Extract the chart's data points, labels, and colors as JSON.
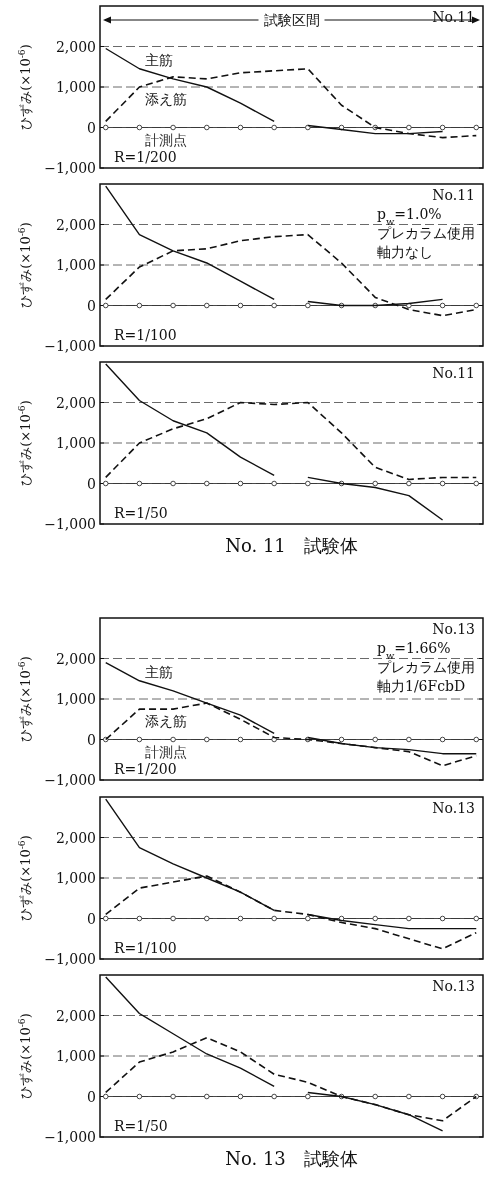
{
  "chart_data": [
    {
      "type": "line",
      "ylabel": "ひずみ(×10$^{-6}$)",
      "categories": [
        null,
        null,
        null,
        null,
        null,
        null,
        null,
        null,
        null,
        null,
        null,
        null
      ],
      "ylim": [
        -1000,
        3000
      ],
      "yticks": [
        {
          "value": -1000,
          "label": "−1,000"
        },
        {
          "value": 0,
          "label": "0"
        },
        {
          "value": 1000,
          "label": "1,000"
        },
        {
          "value": 2000,
          "label": "2,000"
        }
      ],
      "grid": "y",
      "tick_labels": "y",
      "legend": false,
      "annotations": [
        "R=1/200",
        "No.11",
        {
          "text": "試験区間"
        }
      ],
      "series": [
        {
          "name": "計測点",
          "color": "#333333",
          "marker": "circle",
          "line_style": "solid",
          "values": [
            0,
            0,
            0,
            0,
            0,
            0,
            0,
            0,
            0,
            0,
            0,
            0
          ]
        },
        {
          "name": "主筋",
          "color": "#111111",
          "line_style": "solid",
          "values": [
            1950,
            1450,
            1200,
            1000,
            600,
            150,
            null,
            null,
            null,
            null,
            null,
            null
          ]
        },
        {
          "color": "#111111",
          "line_style": "solid",
          "values": [
            null,
            null,
            null,
            null,
            null,
            null,
            50,
            -50,
            -150,
            -150,
            -100,
            null
          ]
        },
        {
          "name": "添え筋",
          "color": "#111111",
          "line_style": "dashed",
          "values": [
            150,
            1000,
            1250,
            1200,
            1350,
            1400,
            1450,
            550,
            0,
            -150,
            -250,
            -200
          ]
        }
      ]
    },
    {
      "type": "line",
      "ylabel": "ひずみ(×10$^{-6}$)",
      "categories": [
        null,
        null,
        null,
        null,
        null,
        null,
        null,
        null,
        null,
        null,
        null,
        null
      ],
      "ylim": [
        -1000,
        3000
      ],
      "yticks": [
        {
          "value": -1000,
          "label": "−1,000"
        },
        {
          "value": 0,
          "label": "0"
        },
        {
          "value": 1000,
          "label": "1,000"
        },
        {
          "value": 2000,
          "label": "2,000"
        }
      ],
      "grid": "y",
      "tick_labels": "y",
      "legend": false,
      "annotations": [
        "R=1/100",
        "No.11",
        "p$_{w}$=1.0%",
        "プレカラム使用",
        "軸力なし"
      ],
      "series": [
        {
          "color": "#333333",
          "marker": "circle",
          "line_style": "solid",
          "values": [
            0,
            0,
            0,
            0,
            0,
            0,
            0,
            0,
            0,
            0,
            0,
            0
          ]
        },
        {
          "color": "#111111",
          "line_style": "solid",
          "values": [
            2950,
            1750,
            1350,
            1050,
            600,
            150,
            null,
            null,
            null,
            null,
            null,
            null
          ]
        },
        {
          "color": "#111111",
          "line_style": "solid",
          "values": [
            null,
            null,
            null,
            null,
            null,
            null,
            100,
            0,
            0,
            50,
            150,
            null
          ]
        },
        {
          "color": "#111111",
          "line_style": "dashed",
          "values": [
            150,
            950,
            1350,
            1400,
            1600,
            1700,
            1750,
            1050,
            200,
            -100,
            -250,
            -100
          ]
        }
      ]
    },
    {
      "type": "line",
      "title": "No. 11　試験体",
      "ylabel": "ひずみ(×10$^{-6}$)",
      "categories": [
        null,
        null,
        null,
        null,
        null,
        null,
        null,
        null,
        null,
        null,
        null,
        null
      ],
      "ylim": [
        -1000,
        3000
      ],
      "yticks": [
        {
          "value": -1000,
          "label": "−1,000"
        },
        {
          "value": 0,
          "label": "0"
        },
        {
          "value": 1000,
          "label": "1,000"
        },
        {
          "value": 2000,
          "label": "2,000"
        }
      ],
      "grid": "y",
      "tick_labels": "y",
      "legend": false,
      "annotations": [
        "R=1/50",
        "No.11"
      ],
      "series": [
        {
          "color": "#333333",
          "marker": "circle",
          "line_style": "solid",
          "values": [
            0,
            0,
            0,
            0,
            0,
            0,
            0,
            0,
            0,
            0,
            0,
            0
          ]
        },
        {
          "color": "#111111",
          "line_style": "solid",
          "values": [
            2950,
            2050,
            1550,
            1250,
            650,
            200,
            null,
            null,
            null,
            null,
            null,
            null
          ]
        },
        {
          "color": "#111111",
          "line_style": "solid",
          "values": [
            null,
            null,
            null,
            null,
            null,
            null,
            150,
            0,
            -100,
            -300,
            -900,
            null
          ]
        },
        {
          "color": "#111111",
          "line_style": "dashed",
          "values": [
            150,
            1000,
            1350,
            1600,
            2000,
            1950,
            2000,
            1250,
            400,
            100,
            150,
            150
          ]
        }
      ]
    },
    {
      "type": "line",
      "ylabel": "ひずみ(×10$^{-6}$)",
      "categories": [
        null,
        null,
        null,
        null,
        null,
        null,
        null,
        null,
        null,
        null,
        null,
        null
      ],
      "ylim": [
        -1000,
        3000
      ],
      "yticks": [
        {
          "value": -1000,
          "label": "−1,000"
        },
        {
          "value": 0,
          "label": "0"
        },
        {
          "value": 1000,
          "label": "1,000"
        },
        {
          "value": 2000,
          "label": "2,000"
        }
      ],
      "grid": "y",
      "tick_labels": "y",
      "legend": false,
      "annotations": [
        "R=1/200",
        "No.13",
        "p$_{w}$=1.66%",
        "プレカラム使用",
        "軸力1/6FcbD"
      ],
      "series": [
        {
          "name": "計測点",
          "color": "#333333",
          "marker": "circle",
          "line_style": "solid",
          "values": [
            0,
            0,
            0,
            0,
            0,
            0,
            0,
            0,
            0,
            0,
            0,
            0
          ]
        },
        {
          "name": "主筋",
          "color": "#111111",
          "line_style": "solid",
          "values": [
            1900,
            1450,
            1200,
            900,
            600,
            150,
            null,
            null,
            null,
            null,
            null,
            null
          ]
        },
        {
          "color": "#111111",
          "line_style": "solid",
          "values": [
            null,
            null,
            null,
            null,
            null,
            null,
            50,
            -100,
            -200,
            -250,
            -350,
            -350
          ]
        },
        {
          "name": "添え筋",
          "color": "#111111",
          "line_style": "dashed",
          "values": [
            0,
            750,
            750,
            900,
            500,
            50,
            0,
            -100,
            -200,
            -300,
            -650,
            -400
          ]
        }
      ]
    },
    {
      "type": "line",
      "ylabel": "ひずみ(×10$^{-6}$)",
      "categories": [
        null,
        null,
        null,
        null,
        null,
        null,
        null,
        null,
        null,
        null,
        null,
        null
      ],
      "ylim": [
        -1000,
        3000
      ],
      "yticks": [
        {
          "value": -1000,
          "label": "−1,000"
        },
        {
          "value": 0,
          "label": "0"
        },
        {
          "value": 1000,
          "label": "1,000"
        },
        {
          "value": 2000,
          "label": "2,000"
        }
      ],
      "grid": "y",
      "tick_labels": "y",
      "legend": false,
      "annotations": [
        "R=1/100",
        "No.13"
      ],
      "series": [
        {
          "color": "#333333",
          "marker": "circle",
          "line_style": "solid",
          "values": [
            0,
            0,
            0,
            0,
            0,
            0,
            0,
            0,
            0,
            0,
            0,
            0
          ]
        },
        {
          "color": "#111111",
          "line_style": "solid",
          "values": [
            2950,
            1750,
            1350,
            1000,
            650,
            200,
            null,
            null,
            null,
            null,
            null,
            null
          ]
        },
        {
          "color": "#111111",
          "line_style": "solid",
          "values": [
            null,
            null,
            null,
            null,
            null,
            null,
            100,
            -50,
            -150,
            -250,
            -250,
            -250
          ]
        },
        {
          "color": "#111111",
          "line_style": "dashed",
          "values": [
            100,
            750,
            900,
            1050,
            650,
            200,
            100,
            -100,
            -250,
            -500,
            -750,
            -350
          ]
        }
      ]
    },
    {
      "type": "line",
      "title": "No. 13　試験体",
      "ylabel": "ひずみ(×10$^{-6}$)",
      "categories": [
        null,
        null,
        null,
        null,
        null,
        null,
        null,
        null,
        null,
        null,
        null,
        null
      ],
      "ylim": [
        -1000,
        3000
      ],
      "yticks": [
        {
          "value": -1000,
          "label": "−1,000"
        },
        {
          "value": 0,
          "label": "0"
        },
        {
          "value": 1000,
          "label": "1,000"
        },
        {
          "value": 2000,
          "label": "2,000"
        }
      ],
      "grid": "y",
      "tick_labels": "y",
      "legend": false,
      "annotations": [
        "R=1/50",
        "No.13"
      ],
      "series": [
        {
          "color": "#333333",
          "marker": "circle",
          "line_style": "solid",
          "values": [
            0,
            0,
            0,
            0,
            0,
            0,
            0,
            0,
            0,
            0,
            0,
            0
          ]
        },
        {
          "color": "#111111",
          "line_style": "solid",
          "values": [
            2950,
            2050,
            1550,
            1050,
            700,
            250,
            null,
            null,
            null,
            null,
            null,
            null
          ]
        },
        {
          "color": "#111111",
          "line_style": "solid",
          "values": [
            null,
            null,
            null,
            null,
            null,
            null,
            100,
            0,
            -200,
            -450,
            -850,
            null
          ]
        },
        {
          "color": "#111111",
          "line_style": "dashed",
          "values": [
            100,
            850,
            1100,
            1450,
            1100,
            550,
            350,
            0,
            -200,
            -450,
            -600,
            0
          ]
        }
      ]
    }
  ]
}
